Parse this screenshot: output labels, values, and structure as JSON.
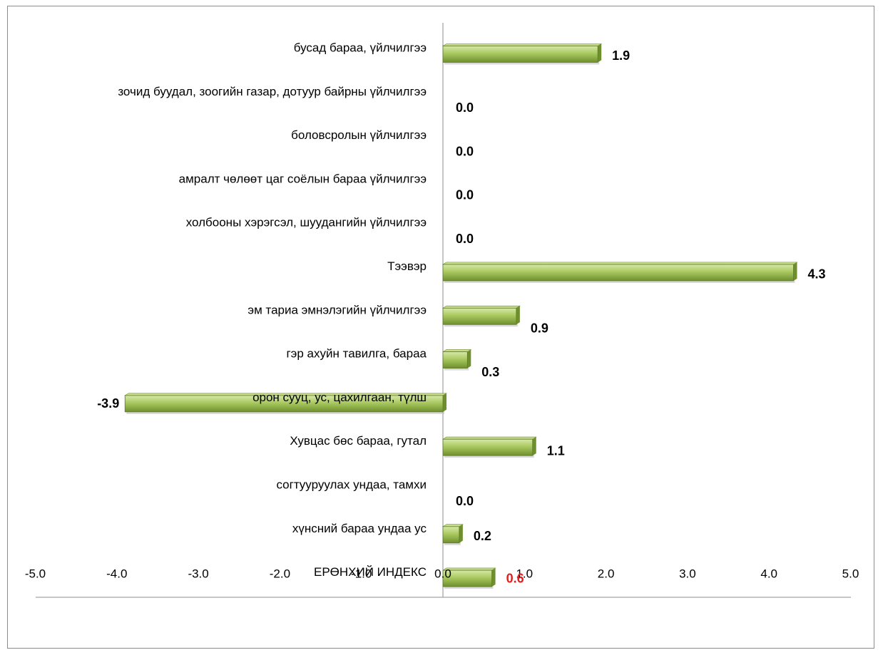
{
  "chart_data": {
    "type": "bar",
    "orientation": "horizontal",
    "title": "",
    "xlabel": "",
    "ylabel": "",
    "xlim": [
      -5.0,
      5.0
    ],
    "x_ticks": [
      "-5.0",
      "-4.0",
      "-3.0",
      "-2.0",
      "-1.0",
      "0.0",
      "1.0",
      "2.0",
      "3.0",
      "4.0",
      "5.0"
    ],
    "grid": false,
    "legend": "none",
    "bar_color": "#9bbb59",
    "categories": [
      "бусад бараа, үйлчилгээ",
      "зочид буудал, зоогийн газар, дотуур байрны үйлчилгээ",
      "боловсролын үйлчилгээ",
      "амралт чөлөөт цаг соёлын бараа үйлчилгээ",
      "холбооны хэрэгсэл, шуудангийн үйлчилгээ",
      "Тээвэр",
      "эм тариа эмнэлэгийн үйлчилгээ",
      "гэр ахуйн тавилга, бараа",
      "орон сууц, ус, цахилгаан, түлш",
      "Хувцас бөс бараа, гутал",
      "согтууруулах ундаа, тамхи",
      "хүнсний бараа ундаа ус",
      "ЕРӨНХИЙ ИНДЕКС"
    ],
    "values": [
      1.9,
      0.0,
      0.0,
      0.0,
      0.0,
      4.3,
      0.9,
      0.3,
      -3.9,
      1.1,
      0.0,
      0.2,
      0.6
    ],
    "value_labels": [
      "1.9",
      "0.0",
      "0.0",
      "0.0",
      "0.0",
      "4.3",
      "0.9",
      "0.3",
      "-3.9",
      "1.1",
      "0.0",
      "0.2",
      "0.6"
    ],
    "highlight": {
      "category": "ЕРӨНХИЙ ИНДЕКС",
      "label_color": "#e02020"
    },
    "label_color": "#000000"
  }
}
